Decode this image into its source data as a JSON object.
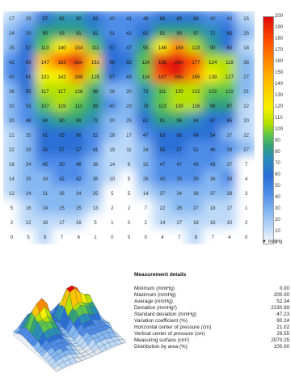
{
  "heatmap": {
    "colors": [
      "#ffffff",
      "#bcd9f8",
      "#86b8f2",
      "#4d8ce8",
      "#2a6fd6",
      "#2a8fb7",
      "#33a17a",
      "#5cc54b",
      "#b5e000",
      "#f6f000",
      "#ffc400",
      "#ff8c00",
      "#ff4a00",
      "#e10b0b"
    ],
    "rows": [
      [
        "17",
        "29",
        "57",
        "82",
        "80",
        "63",
        "40",
        "41",
        "48",
        "66",
        "69",
        "66",
        "40",
        "40",
        "15"
      ],
      [
        "24",
        "39",
        "90",
        "93",
        "91",
        "82",
        "51",
        "41",
        "62",
        "92",
        "99",
        "97",
        "72",
        "65",
        "25"
      ],
      [
        "35",
        "57",
        "113",
        "140",
        "154",
        "111",
        "57",
        "47",
        "95",
        "146",
        "169",
        "123",
        "90",
        "60",
        "18"
      ],
      [
        "41",
        "69",
        "147",
        "182",
        "200+",
        "161",
        "68",
        "55",
        "114",
        "196",
        "200+",
        "177",
        "124",
        "118",
        "36"
      ],
      [
        "40",
        "61",
        "131",
        "142",
        "168",
        "125",
        "57",
        "43",
        "114",
        "187",
        "200+",
        "165",
        "139",
        "127",
        "27"
      ],
      [
        "36",
        "55",
        "117",
        "117",
        "128",
        "98",
        "38",
        "30",
        "79",
        "111",
        "130",
        "122",
        "102",
        "102",
        "31"
      ],
      [
        "32",
        "53",
        "107",
        "119",
        "111",
        "89",
        "40",
        "29",
        "78",
        "113",
        "130",
        "116",
        "98",
        "87",
        "22"
      ],
      [
        "30",
        "48",
        "84",
        "90",
        "89",
        "72",
        "30",
        "25",
        "61",
        "91",
        "96",
        "84",
        "67",
        "65",
        "20"
      ],
      [
        "21",
        "35",
        "61",
        "65",
        "66",
        "52",
        "28",
        "17",
        "47",
        "63",
        "66",
        "64",
        "54",
        "37",
        "22"
      ],
      [
        "22",
        "33",
        "55",
        "57",
        "57",
        "41",
        "19",
        "11",
        "34",
        "55",
        "57",
        "51",
        "46",
        "39",
        "27"
      ],
      [
        "16",
        "34",
        "45",
        "50",
        "46",
        "38",
        "14",
        "8",
        "32",
        "47",
        "47",
        "43",
        "43",
        "37",
        "7"
      ],
      [
        "14",
        "25",
        "34",
        "42",
        "42",
        "36",
        "10",
        "5",
        "26",
        "40",
        "39",
        "39",
        "36",
        "39",
        "4"
      ],
      [
        "12",
        "24",
        "31",
        "36",
        "34",
        "25",
        "5",
        "5",
        "14",
        "37",
        "34",
        "38",
        "37",
        "28",
        "3"
      ],
      [
        "5",
        "16",
        "24",
        "25",
        "25",
        "13",
        "2",
        "2",
        "7",
        "22",
        "26",
        "27",
        "18",
        "17",
        "1"
      ],
      [
        "2",
        "12",
        "18",
        "17",
        "16",
        "5",
        "1",
        "0",
        "2",
        "14",
        "17",
        "18",
        "16",
        "10",
        "2"
      ],
      [
        "0",
        "5",
        "8",
        "7",
        "6",
        "1",
        "0",
        "0",
        "0",
        "4",
        "7",
        "8",
        "7",
        "4",
        "0"
      ]
    ]
  },
  "legend": {
    "labels": [
      "200",
      "190",
      "180",
      "170",
      "160",
      "150",
      "140",
      "130",
      "120",
      "110",
      "100",
      "90",
      "80",
      "70",
      "60",
      "50",
      "40",
      "30",
      "20",
      "10",
      "0"
    ],
    "unit": "▼ mmHg"
  },
  "details": {
    "title": "Measurement details",
    "rows": [
      {
        "label": "Minimum (mmHg)",
        "value": "0.00"
      },
      {
        "label": "Maximum (mmHg)",
        "value": "200.00"
      },
      {
        "label": "Average (mmHg)",
        "value": "52.34"
      },
      {
        "label": "Deviation (mmHg²)",
        "value": "2230.89"
      },
      {
        "label": "Standard deviation (mmHg)",
        "value": "47.23"
      },
      {
        "label": "Variation coefficient (%)",
        "value": "90.24"
      },
      {
        "label": "Horizontal center of pressure (cm)",
        "value": "21.02"
      },
      {
        "label": "Vertical center of pressure (cm)",
        "value": "29.55"
      },
      {
        "label": "Measuring surface (cm²)",
        "value": "2070.25"
      },
      {
        "label": "Distribution by area (%)",
        "value": "100.00"
      }
    ]
  }
}
